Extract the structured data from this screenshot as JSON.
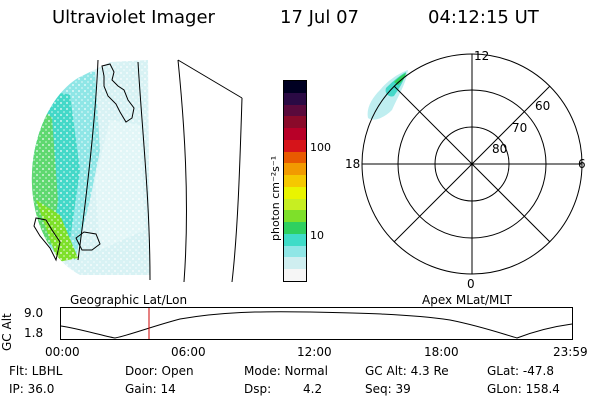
{
  "header": {
    "instrument": "Ultraviolet Imager",
    "date": "17 Jul 07",
    "time": "04:12:15 UT"
  },
  "colorbar": {
    "unit_label": "photon cm⁻²s⁻¹",
    "ticks": [
      "100",
      "10"
    ],
    "colors": [
      "#f6f6f6",
      "#cfeef0",
      "#8fe6e6",
      "#3fdcc8",
      "#2fd060",
      "#7ee02a",
      "#c7ee22",
      "#e9f400",
      "#f5c800",
      "#f29a00",
      "#e85a00",
      "#d6141a",
      "#b80028",
      "#8a0a2a",
      "#5a0a3c",
      "#2a0a44",
      "#000022"
    ]
  },
  "polar": {
    "mlt_labels": [
      "12",
      "18",
      "6",
      "0"
    ],
    "lat_labels": [
      "60",
      "70",
      "80"
    ]
  },
  "timeline": {
    "left_title": "Geographic Lat/Lon",
    "right_title": "Apex  MLat/MLT",
    "axis_name": "GC Alt",
    "y_ticks": [
      "9.0",
      "1.8"
    ],
    "x_ticks": [
      "00:00",
      "06:00",
      "12:00",
      "18:00",
      "23:59"
    ],
    "marker_color": "#cc0000"
  },
  "footer": {
    "flt": "Flt: LBHL",
    "ip": "IP: 36.0",
    "door": "Door: Open",
    "gain": "Gain: 14",
    "mode": "Mode: Normal",
    "dsp_label": "Dsp:",
    "dsp_value": "4.2",
    "gcalt": "GC Alt: 4.3 Re",
    "seq": "Seq: 39",
    "glat": "GLat: -47.8",
    "glon": "GLon: 158.4"
  }
}
